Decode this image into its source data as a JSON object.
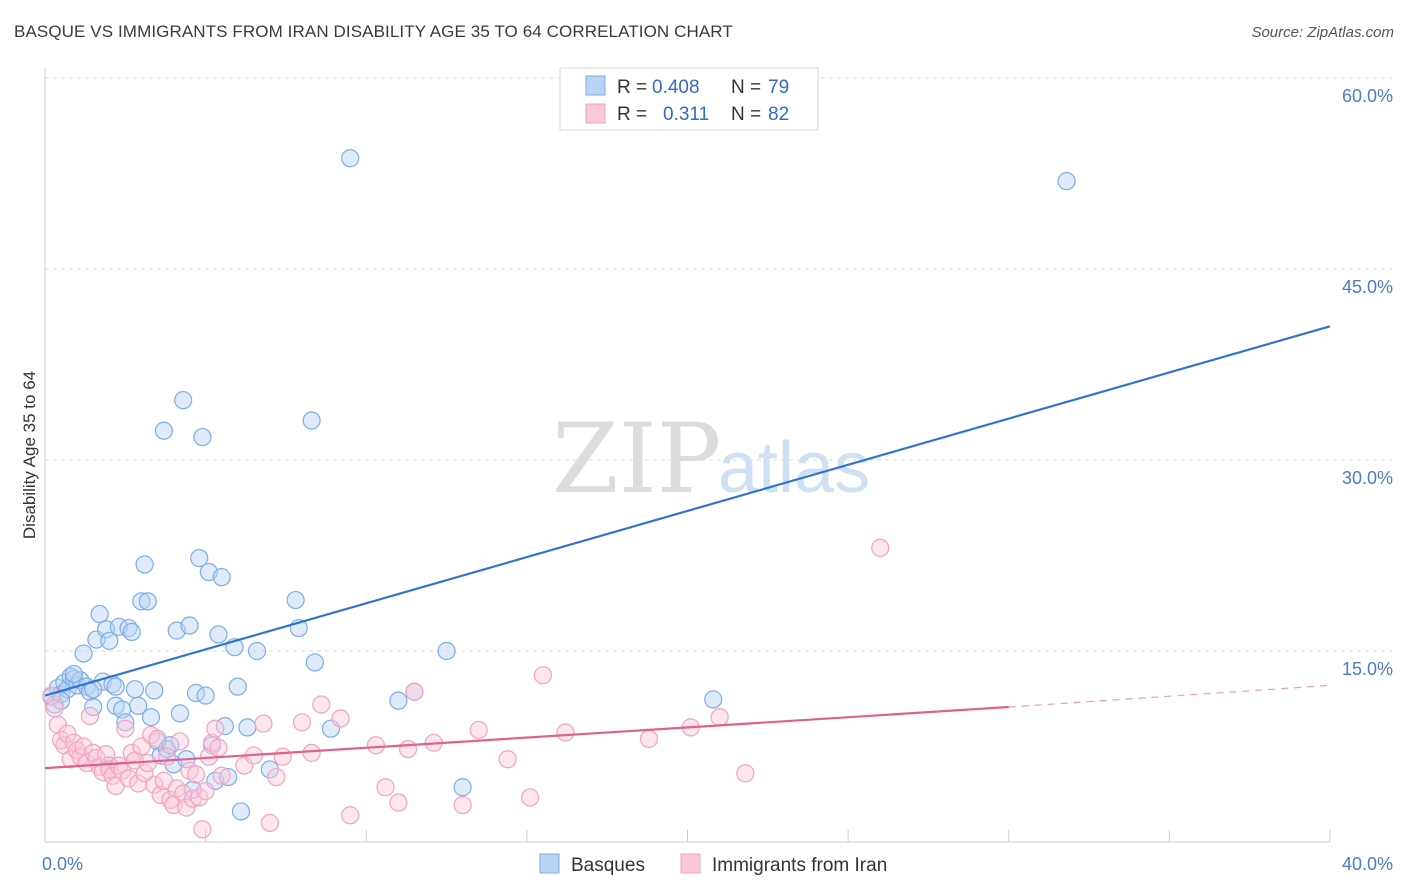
{
  "title": "BASQUE VS IMMIGRANTS FROM IRAN DISABILITY AGE 35 TO 64 CORRELATION CHART",
  "source": "Source: ZipAtlas.com",
  "watermark": {
    "zip": "ZIP",
    "atlas": "atlas"
  },
  "chart_data": {
    "type": "scatter",
    "title": "BASQUE VS IMMIGRANTS FROM IRAN DISABILITY AGE 35 TO 64 CORRELATION CHART",
    "xlabel": "",
    "ylabel": "Disability Age 35 to 64",
    "xlim": [
      0,
      40
    ],
    "ylim": [
      0,
      60
    ],
    "x_tick_labels": [
      "0.0%",
      "40.0%"
    ],
    "y_ticks": [
      {
        "value": 15,
        "label": "15.0%"
      },
      {
        "value": 30,
        "label": "30.0%"
      },
      {
        "value": 45,
        "label": "45.0%"
      },
      {
        "value": 60,
        "label": "60.0%"
      }
    ],
    "legend": [
      {
        "r_label": "R =",
        "r_value": "0.408",
        "n_label": "N =",
        "n_value": "79"
      },
      {
        "r_label": "R =",
        "r_value": "0.311",
        "n_label": "N =",
        "n_value": "82"
      }
    ],
    "series": [
      {
        "name": "Basques",
        "color": "#7aaee8",
        "line_color": "#2f74d0",
        "trend": {
          "x0": 0,
          "y0": 11.5,
          "x1": 40,
          "y1": 40.5
        },
        "points": [
          [
            0.2,
            11.4
          ],
          [
            0.3,
            10.8
          ],
          [
            0.4,
            12.1
          ],
          [
            0.5,
            11.6
          ],
          [
            0.6,
            12.5
          ],
          [
            0.7,
            12.0
          ],
          [
            0.8,
            13.0
          ],
          [
            0.9,
            12.8
          ],
          [
            1.0,
            12.3
          ],
          [
            1.1,
            12.7
          ],
          [
            1.2,
            14.8
          ],
          [
            1.3,
            12.2
          ],
          [
            1.4,
            11.8
          ],
          [
            1.5,
            10.6
          ],
          [
            1.6,
            15.9
          ],
          [
            1.7,
            17.9
          ],
          [
            1.8,
            12.6
          ],
          [
            1.9,
            16.7
          ],
          [
            2.0,
            15.8
          ],
          [
            2.1,
            12.4
          ],
          [
            2.2,
            10.7
          ],
          [
            2.3,
            16.9
          ],
          [
            2.4,
            10.4
          ],
          [
            2.5,
            9.4
          ],
          [
            2.6,
            16.8
          ],
          [
            2.7,
            16.5
          ],
          [
            2.8,
            12.0
          ],
          [
            2.9,
            10.7
          ],
          [
            3.0,
            18.9
          ],
          [
            3.1,
            21.8
          ],
          [
            3.2,
            18.9
          ],
          [
            3.3,
            9.8
          ],
          [
            3.4,
            11.9
          ],
          [
            3.5,
            7.9
          ],
          [
            3.6,
            6.8
          ],
          [
            3.7,
            32.3
          ],
          [
            3.8,
            7.3
          ],
          [
            4.0,
            6.1
          ],
          [
            4.1,
            16.6
          ],
          [
            4.2,
            10.1
          ],
          [
            4.3,
            34.7
          ],
          [
            4.5,
            17.0
          ],
          [
            4.6,
            4.1
          ],
          [
            4.7,
            11.7
          ],
          [
            4.8,
            22.3
          ],
          [
            4.9,
            31.8
          ],
          [
            5.0,
            11.5
          ],
          [
            5.1,
            21.2
          ],
          [
            5.2,
            7.6
          ],
          [
            5.3,
            4.8
          ],
          [
            5.4,
            16.3
          ],
          [
            5.5,
            20.8
          ],
          [
            5.7,
            5.1
          ],
          [
            5.9,
            15.3
          ],
          [
            6.0,
            12.2
          ],
          [
            6.1,
            2.4
          ],
          [
            6.3,
            9.0
          ],
          [
            6.6,
            15.0
          ],
          [
            7.0,
            5.7
          ],
          [
            7.8,
            19.0
          ],
          [
            7.9,
            16.8
          ],
          [
            8.3,
            33.1
          ],
          [
            8.4,
            14.1
          ],
          [
            8.9,
            8.9
          ],
          [
            9.5,
            53.7
          ],
          [
            11.0,
            11.1
          ],
          [
            11.5,
            11.8
          ],
          [
            12.5,
            15.0
          ],
          [
            13.0,
            4.3
          ],
          [
            20.8,
            11.2
          ],
          [
            31.8,
            51.9
          ],
          [
            0.5,
            11.1
          ],
          [
            0.9,
            13.2
          ],
          [
            1.5,
            12.0
          ],
          [
            2.0,
            6.0
          ],
          [
            2.2,
            12.2
          ],
          [
            3.9,
            7.6
          ],
          [
            4.4,
            6.5
          ],
          [
            5.6,
            9.1
          ]
        ]
      },
      {
        "name": "Immigrants from Iran",
        "color": "#f3a3bf",
        "line_color": "#e0608f",
        "trend": {
          "x0": 0,
          "y0": 5.8,
          "x1": 30,
          "y1": 10.6
        },
        "trend_dashed_to": {
          "x": 40,
          "y": 12.3
        },
        "points": [
          [
            0.2,
            11.5
          ],
          [
            0.3,
            10.5
          ],
          [
            0.4,
            9.2
          ],
          [
            0.5,
            8.0
          ],
          [
            0.6,
            7.6
          ],
          [
            0.7,
            8.5
          ],
          [
            0.8,
            6.5
          ],
          [
            0.9,
            7.8
          ],
          [
            1.0,
            7.2
          ],
          [
            1.1,
            6.7
          ],
          [
            1.2,
            7.5
          ],
          [
            1.3,
            6.2
          ],
          [
            1.4,
            9.9
          ],
          [
            1.5,
            7.0
          ],
          [
            1.6,
            6.6
          ],
          [
            1.7,
            5.9
          ],
          [
            1.8,
            5.5
          ],
          [
            1.9,
            6.9
          ],
          [
            2.0,
            5.7
          ],
          [
            2.1,
            5.2
          ],
          [
            2.2,
            4.4
          ],
          [
            2.3,
            6.0
          ],
          [
            2.4,
            5.6
          ],
          [
            2.5,
            8.9
          ],
          [
            2.6,
            5.0
          ],
          [
            2.7,
            7.0
          ],
          [
            2.8,
            6.4
          ],
          [
            2.9,
            4.6
          ],
          [
            3.0,
            7.5
          ],
          [
            3.1,
            5.4
          ],
          [
            3.2,
            6.2
          ],
          [
            3.3,
            8.4
          ],
          [
            3.4,
            4.5
          ],
          [
            3.5,
            8.1
          ],
          [
            3.6,
            3.7
          ],
          [
            3.7,
            4.8
          ],
          [
            3.8,
            6.7
          ],
          [
            3.9,
            3.3
          ],
          [
            4.0,
            2.9
          ],
          [
            4.1,
            4.2
          ],
          [
            4.2,
            7.9
          ],
          [
            4.3,
            3.8
          ],
          [
            4.4,
            2.7
          ],
          [
            4.5,
            5.6
          ],
          [
            4.6,
            3.4
          ],
          [
            4.7,
            5.3
          ],
          [
            4.8,
            3.5
          ],
          [
            4.9,
            1.0
          ],
          [
            5.0,
            4.0
          ],
          [
            5.1,
            6.7
          ],
          [
            5.2,
            7.8
          ],
          [
            5.3,
            8.9
          ],
          [
            5.4,
            7.4
          ],
          [
            5.5,
            5.2
          ],
          [
            6.2,
            6.0
          ],
          [
            6.5,
            6.8
          ],
          [
            6.8,
            9.3
          ],
          [
            7.0,
            1.5
          ],
          [
            7.2,
            5.1
          ],
          [
            7.4,
            6.7
          ],
          [
            8.0,
            9.4
          ],
          [
            8.3,
            7.0
          ],
          [
            8.6,
            10.8
          ],
          [
            9.2,
            9.7
          ],
          [
            9.5,
            2.1
          ],
          [
            10.3,
            7.6
          ],
          [
            10.6,
            4.3
          ],
          [
            11.3,
            7.3
          ],
          [
            11.5,
            11.8
          ],
          [
            12.1,
            7.8
          ],
          [
            13.0,
            2.9
          ],
          [
            13.5,
            8.8
          ],
          [
            14.4,
            6.5
          ],
          [
            15.1,
            3.5
          ],
          [
            15.5,
            13.1
          ],
          [
            16.2,
            8.6
          ],
          [
            18.8,
            8.1
          ],
          [
            20.1,
            9.0
          ],
          [
            21.0,
            9.8
          ],
          [
            21.8,
            5.4
          ],
          [
            26.0,
            23.1
          ],
          [
            11.0,
            3.1
          ]
        ]
      }
    ]
  }
}
